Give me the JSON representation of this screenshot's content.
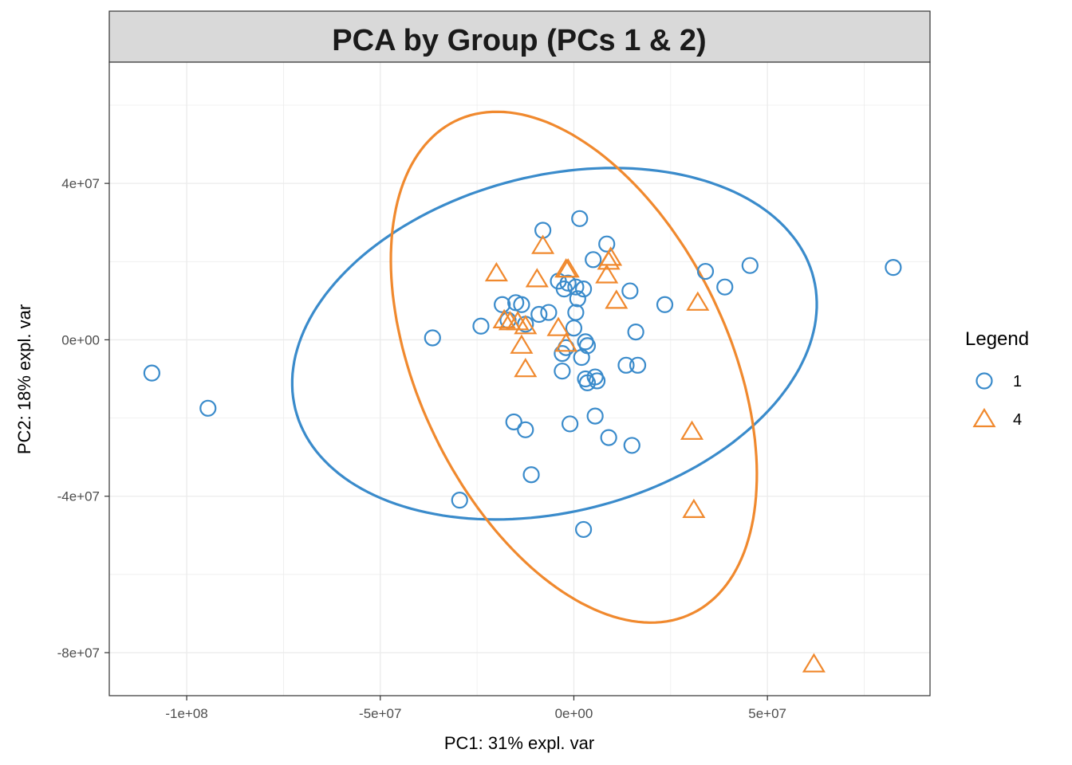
{
  "chart_data": {
    "type": "scatter",
    "title": "PCA by Group (PCs 1 & 2)",
    "xlabel": "PC1: 31% expl. var",
    "ylabel": "PC2: 18% expl. var",
    "xlim": [
      -120000000,
      92000000
    ],
    "ylim": [
      -91000000,
      71000000
    ],
    "x_ticks": [
      {
        "value": -100000000,
        "label": "-1e+08"
      },
      {
        "value": -50000000,
        "label": "-5e+07"
      },
      {
        "value": 0,
        "label": "0e+00"
      },
      {
        "value": 50000000,
        "label": "5e+07"
      }
    ],
    "y_ticks": [
      {
        "value": -80000000,
        "label": "-8e+07"
      },
      {
        "value": -40000000,
        "label": "-4e+07"
      },
      {
        "value": 0,
        "label": "0e+00"
      },
      {
        "value": 40000000,
        "label": "4e+07"
      }
    ],
    "grid": true,
    "legend": {
      "title": "Legend",
      "position": "right"
    },
    "series": [
      {
        "name": "1",
        "shape": "circle",
        "color": "#3A8BCB",
        "ellipse": {
          "cx": -5000000,
          "cy": -1000000,
          "rx": 69000000,
          "ry": 43000000,
          "angle_deg": 14
        },
        "points": [
          [
            -109000000,
            -8500000
          ],
          [
            -94500000,
            -17500000
          ],
          [
            -36500000,
            500000
          ],
          [
            -29500000,
            -41000000
          ],
          [
            -24000000,
            3500000
          ],
          [
            -18500000,
            9000000
          ],
          [
            -17000000,
            5000000
          ],
          [
            -15000000,
            9500000
          ],
          [
            -13500000,
            9000000
          ],
          [
            -12500000,
            4000000
          ],
          [
            -15500000,
            -21000000
          ],
          [
            -12500000,
            -23000000
          ],
          [
            -11000000,
            -34500000
          ],
          [
            -9000000,
            6500000
          ],
          [
            -6500000,
            7000000
          ],
          [
            -8000000,
            28000000
          ],
          [
            -4000000,
            15000000
          ],
          [
            -2500000,
            13000000
          ],
          [
            -1500000,
            14500000
          ],
          [
            500000,
            13500000
          ],
          [
            1000000,
            10500000
          ],
          [
            2500000,
            13000000
          ],
          [
            1500000,
            31000000
          ],
          [
            8500000,
            24500000
          ],
          [
            5000000,
            20500000
          ],
          [
            500000,
            7000000
          ],
          [
            0,
            3000000
          ],
          [
            -3000000,
            -3500000
          ],
          [
            -2000000,
            -2000000
          ],
          [
            2000000,
            -4500000
          ],
          [
            3500000,
            -1500000
          ],
          [
            3000000,
            -500000
          ],
          [
            -3000000,
            -8000000
          ],
          [
            3000000,
            -10000000
          ],
          [
            5500000,
            -9500000
          ],
          [
            3500000,
            -11000000
          ],
          [
            6000000,
            -10500000
          ],
          [
            -1000000,
            -21500000
          ],
          [
            5500000,
            -19500000
          ],
          [
            9000000,
            -25000000
          ],
          [
            15000000,
            -27000000
          ],
          [
            2500000,
            -48500000
          ],
          [
            14500000,
            12500000
          ],
          [
            16000000,
            2000000
          ],
          [
            13500000,
            -6500000
          ],
          [
            16500000,
            -6500000
          ],
          [
            23500000,
            9000000
          ],
          [
            34000000,
            17500000
          ],
          [
            39000000,
            13500000
          ],
          [
            45500000,
            19000000
          ],
          [
            82500000,
            18500000
          ]
        ]
      },
      {
        "name": "4",
        "shape": "triangle",
        "color": "#F0892E",
        "ellipse": {
          "cx": 0,
          "cy": -7000000,
          "rx": 70000000,
          "ry": 40000000,
          "angle_deg": 116
        },
        "points": [
          [
            -20000000,
            17000000
          ],
          [
            -8000000,
            24000000
          ],
          [
            -9500000,
            15500000
          ],
          [
            -2000000,
            18000000
          ],
          [
            -1500000,
            18000000
          ],
          [
            9000000,
            20000000
          ],
          [
            9500000,
            21000000
          ],
          [
            8500000,
            16500000
          ],
          [
            11000000,
            10000000
          ],
          [
            32000000,
            9500000
          ],
          [
            -18000000,
            5000000
          ],
          [
            -16500000,
            4500000
          ],
          [
            -14500000,
            4500000
          ],
          [
            -12500000,
            3500000
          ],
          [
            -4000000,
            3000000
          ],
          [
            -13500000,
            -1500000
          ],
          [
            -12500000,
            -7500000
          ],
          [
            -2000000,
            -1000000
          ],
          [
            30500000,
            -23500000
          ],
          [
            31000000,
            -43500000
          ],
          [
            62000000,
            -83000000
          ]
        ]
      }
    ]
  }
}
